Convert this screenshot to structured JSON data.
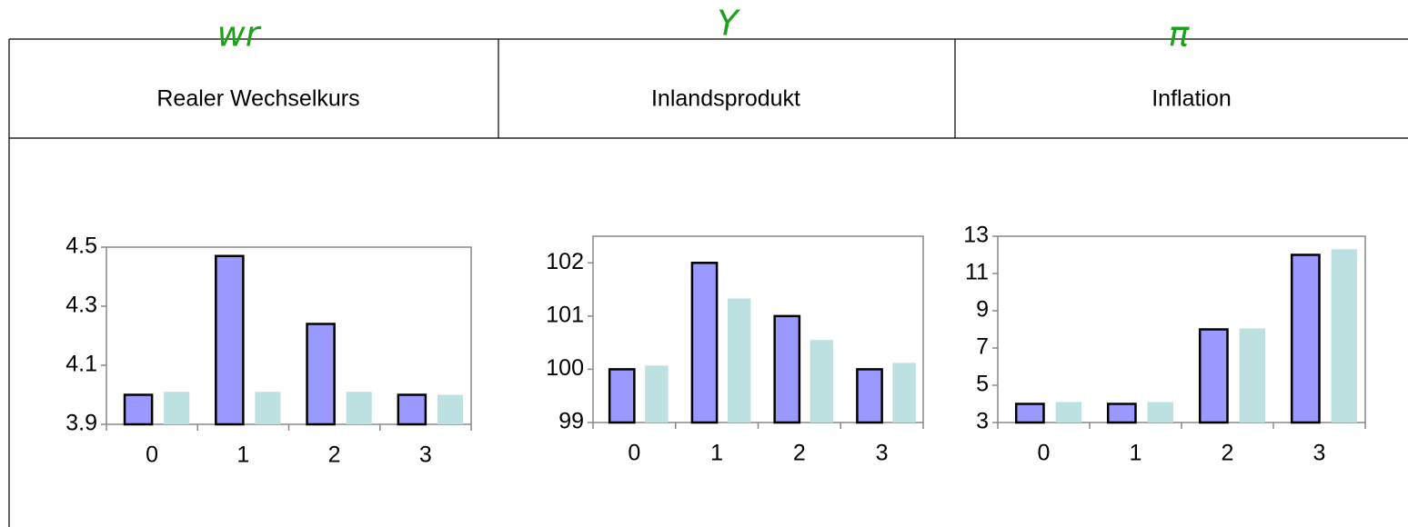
{
  "chart_data": [
    {
      "type": "bar",
      "title": "Realer Wechselkurs",
      "annotation": "wr",
      "categories": [
        "0",
        "1",
        "2",
        "3"
      ],
      "series": [
        {
          "color": "#9999ff",
          "values": [
            4.0,
            4.47,
            4.24,
            4.0
          ]
        },
        {
          "color": "#bde0e0",
          "values": [
            4.01,
            4.01,
            4.01,
            4.0
          ]
        }
      ],
      "ylim": [
        3.9,
        4.5
      ],
      "yticks": [
        3.9,
        4.1,
        4.3,
        4.5
      ]
    },
    {
      "type": "bar",
      "title": "Inlandsprodukt",
      "annotation": "Y",
      "categories": [
        "0",
        "1",
        "2",
        "3"
      ],
      "series": [
        {
          "color": "#9999ff",
          "values": [
            100,
            102,
            101,
            100
          ]
        },
        {
          "color": "#bde0e0",
          "values": [
            100.07,
            101.33,
            100.55,
            100.12
          ]
        }
      ],
      "ylim": [
        99,
        102.5
      ],
      "yticks": [
        99,
        100,
        101,
        102
      ]
    },
    {
      "type": "bar",
      "title": "Inflation",
      "annotation": "π",
      "categories": [
        "0",
        "1",
        "2",
        "3"
      ],
      "series": [
        {
          "color": "#9999ff",
          "values": [
            4,
            4,
            8,
            12
          ]
        },
        {
          "color": "#bde0e0",
          "values": [
            4.1,
            4.1,
            8.05,
            12.3
          ]
        }
      ],
      "ylim": [
        3,
        13
      ],
      "yticks": [
        3,
        5,
        7,
        9,
        11,
        13
      ]
    }
  ]
}
